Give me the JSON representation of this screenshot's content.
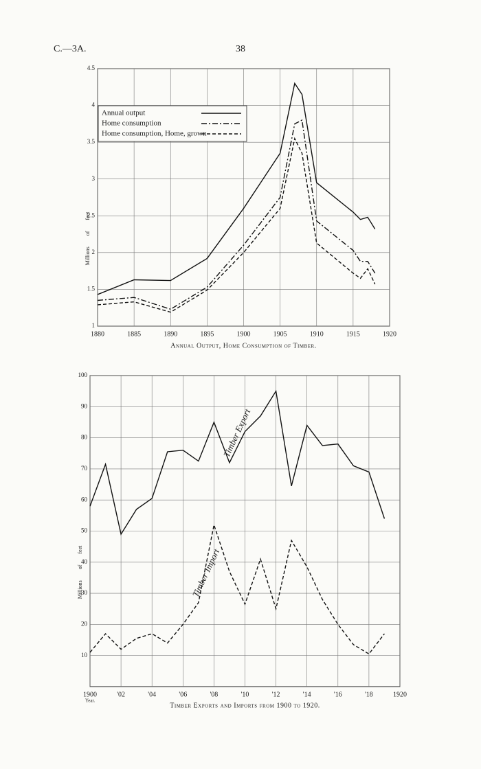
{
  "page_header": {
    "left": "C.—3A.",
    "page_number": "38"
  },
  "chart_data": [
    {
      "type": "line",
      "title": "Annual Output, Home Consumption of Timber.",
      "y_label": "Millions of feet",
      "x": [
        1880,
        1885,
        1890,
        1895,
        1900,
        1905,
        1907,
        1908,
        1910,
        1915,
        1916,
        1917,
        1918
      ],
      "xlim": [
        1880,
        1920
      ],
      "xticks": [
        1880,
        1885,
        1890,
        1895,
        1900,
        1905,
        1910,
        1915,
        1920
      ],
      "ylim": [
        1,
        4.5
      ],
      "yticks": [
        1,
        1.5,
        2,
        2.5,
        3,
        3.5,
        4,
        4.5
      ],
      "grid": true,
      "legend": "upper-left",
      "series": [
        {
          "name": "Annual output",
          "color": "#111111",
          "dash": "solid",
          "values": [
            1.43,
            1.63,
            1.62,
            1.92,
            2.6,
            3.35,
            4.3,
            4.15,
            2.95,
            2.55,
            2.45,
            2.48,
            2.32
          ]
        },
        {
          "name": "Home consumption",
          "color": "#111111",
          "dash": "dashdot",
          "values": [
            1.35,
            1.39,
            1.23,
            1.53,
            2.1,
            2.75,
            3.75,
            3.8,
            2.43,
            2.03,
            1.88,
            1.88,
            1.72
          ]
        },
        {
          "name": "Home consumption, Home, grown",
          "color": "#111111",
          "dash": "dashed",
          "values": [
            1.29,
            1.33,
            1.19,
            1.49,
            2.0,
            2.6,
            3.55,
            3.35,
            2.13,
            1.72,
            1.65,
            1.78,
            1.57
          ]
        }
      ]
    },
    {
      "type": "line",
      "title": "Timber Exports and Imports from 1900 to 1920.",
      "y_label": "Millions of feet",
      "x_label": "Year.",
      "x": [
        1900,
        1901,
        1902,
        1903,
        1904,
        1905,
        1906,
        1907,
        1908,
        1909,
        1910,
        1911,
        1912,
        1913,
        1914,
        1915,
        1916,
        1917,
        1918,
        1919
      ],
      "xlim": [
        1900,
        1920
      ],
      "xticks": [
        1900,
        {
          "value": 1902,
          "label": "'02"
        },
        {
          "value": 1904,
          "label": "'04"
        },
        {
          "value": 1906,
          "label": "'06"
        },
        {
          "value": 1908,
          "label": "'08"
        },
        {
          "value": 1910,
          "label": "'10"
        },
        {
          "value": 1912,
          "label": "'12"
        },
        {
          "value": 1914,
          "label": "'14"
        },
        {
          "value": 1916,
          "label": "'16"
        },
        {
          "value": 1918,
          "label": "'18"
        },
        1920
      ],
      "ylim": [
        0,
        100
      ],
      "yticks": [
        10,
        20,
        30,
        40,
        50,
        60,
        70,
        80,
        90,
        100
      ],
      "grid": true,
      "legend": "inline",
      "series": [
        {
          "name": "Timber Export",
          "color": "#111111",
          "dash": "solid",
          "values": [
            58,
            71.5,
            49,
            57,
            60.5,
            75.5,
            76,
            72.5,
            85,
            72,
            82,
            87,
            95,
            64.5,
            84,
            77.5,
            78,
            71,
            69,
            54
          ]
        },
        {
          "name": "Timber Import",
          "color": "#111111",
          "dash": "dashed",
          "values": [
            11,
            17,
            12,
            15.5,
            17,
            14,
            20,
            27,
            52,
            37,
            26.5,
            41,
            25,
            47,
            38.5,
            28,
            20,
            13.5,
            10.5,
            17
          ]
        }
      ]
    }
  ]
}
